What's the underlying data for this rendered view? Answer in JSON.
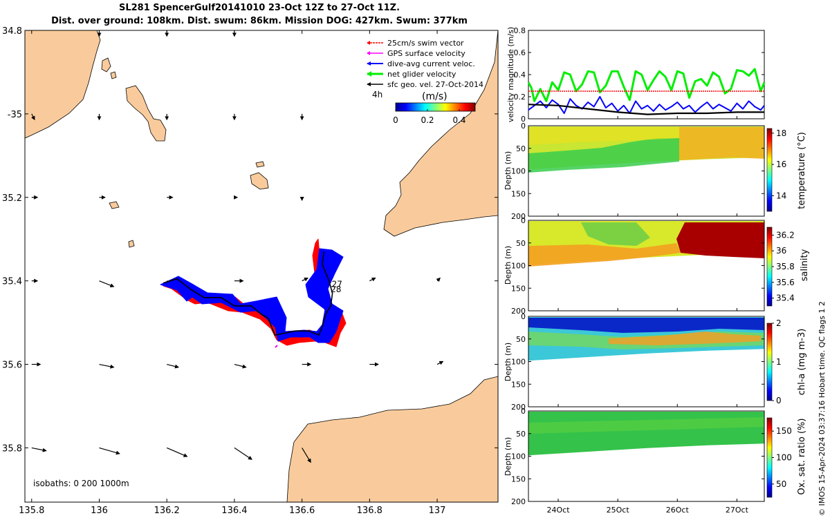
{
  "title_line1": "SL281 SpencerGulf20141010 23-Oct 12Z to 27-Oct 11Z.",
  "title_line2": "Dist. over ground: 108km. Dist. swum: 86km. Mission DOG: 427km. Swum: 377km",
  "credit": "© IMOS 15-Apr-2024 03:37:16 Hobart time. QC flags 1  2",
  "colors": {
    "land": "#f9cb9c",
    "swim": "#ff0000",
    "gps": "#ff00ff",
    "current": "#0000ff",
    "net": "#00ee00",
    "geo": "#000000"
  },
  "chart_data": [
    {
      "type": "map",
      "xlim": [
        135.78,
        137.18
      ],
      "ylim": [
        -35.93,
        -34.8
      ],
      "x_ticks": [
        135.8,
        136,
        136.2,
        136.4,
        136.6,
        136.8,
        137
      ],
      "x_tick_labels": [
        "135.8",
        "136",
        "136.2",
        "136.4",
        "136.6",
        "136.8",
        "137"
      ],
      "y_ticks": [
        -34.8,
        -35,
        -35.2,
        -35.4,
        -35.6,
        -35.8
      ],
      "y_tick_labels": [
        "34.8",
        "-35",
        "35.2",
        "35.4",
        "35.6",
        "35.8"
      ],
      "legend": {
        "position": "top-right",
        "entries": [
          {
            "label": "25cm/s swim vector",
            "color": "#ff0000"
          },
          {
            "label": "GPS surface velocity",
            "color": "#ff00ff"
          },
          {
            "label": "dive-avg current veloc.",
            "color": "#0000ff"
          },
          {
            "label": "net glider velocity",
            "color": "#00ee00"
          },
          {
            "label": "sfc geo. vel. 27-Oct-2014",
            "color": "#000000"
          }
        ],
        "scale_label": "4h"
      },
      "colorbar": {
        "label": "(m/s)",
        "ticks": [
          0,
          0.2,
          0.4
        ],
        "tick_labels": [
          "0",
          "0.2",
          "0.4"
        ],
        "range": [
          0,
          0.5
        ]
      },
      "isobaths_label": "isobaths: 0   200  1000m",
      "day_labels": [
        {
          "text": "27",
          "lon": 136.688,
          "lat": -35.415
        },
        {
          "text": "28",
          "lon": 136.685,
          "lat": -35.427
        }
      ],
      "track": [
        [
          136.19,
          -35.405
        ],
        [
          136.23,
          -35.395
        ],
        [
          136.27,
          -35.42
        ],
        [
          136.31,
          -35.44
        ],
        [
          136.36,
          -35.44
        ],
        [
          136.4,
          -35.46
        ],
        [
          136.45,
          -35.46
        ],
        [
          136.48,
          -35.48
        ],
        [
          136.5,
          -35.49
        ],
        [
          136.52,
          -35.53
        ],
        [
          136.58,
          -35.52
        ],
        [
          136.62,
          -35.52
        ],
        [
          136.65,
          -35.53
        ],
        [
          136.66,
          -35.51
        ],
        [
          136.67,
          -35.48
        ],
        [
          136.685,
          -35.46
        ],
        [
          136.69,
          -35.43
        ],
        [
          136.68,
          -35.4
        ],
        [
          136.66,
          -35.36
        ],
        [
          136.665,
          -35.33
        ]
      ],
      "geo_vectors": [
        {
          "lon": 135.8,
          "lat": -35.0,
          "u": 0.01,
          "v": -0.02
        },
        {
          "lon": 136.0,
          "lat": -35.0,
          "u": 0.0,
          "v": -0.02
        },
        {
          "lon": 136.2,
          "lat": -35.0,
          "u": 0.0,
          "v": -0.02
        },
        {
          "lon": 136.4,
          "lat": -35.0,
          "u": 0.0,
          "v": -0.02
        },
        {
          "lon": 136.6,
          "lat": -35.0,
          "u": 0.0,
          "v": -0.02
        },
        {
          "lon": 136.0,
          "lat": -34.8,
          "u": 0.0,
          "v": -0.02
        },
        {
          "lon": 136.2,
          "lat": -34.8,
          "u": 0.0,
          "v": -0.02
        },
        {
          "lon": 136.4,
          "lat": -34.8,
          "u": 0.0,
          "v": -0.02
        },
        {
          "lon": 135.8,
          "lat": -35.2,
          "u": 0.02,
          "v": 0.0
        },
        {
          "lon": 136.0,
          "lat": -35.2,
          "u": 0.02,
          "v": 0.0
        },
        {
          "lon": 136.2,
          "lat": -35.2,
          "u": 0.02,
          "v": 0.0
        },
        {
          "lon": 136.4,
          "lat": -35.2,
          "u": 0.01,
          "v": 0.0
        },
        {
          "lon": 136.6,
          "lat": -35.2,
          "u": 0.0,
          "v": -0.01
        },
        {
          "lon": 135.8,
          "lat": -35.4,
          "u": 0.02,
          "v": 0.0
        },
        {
          "lon": 136.0,
          "lat": -35.4,
          "u": 0.05,
          "v": -0.02
        },
        {
          "lon": 136.2,
          "lat": -35.4,
          "u": 0.04,
          "v": -0.01
        },
        {
          "lon": 136.4,
          "lat": -35.4,
          "u": 0.03,
          "v": 0.0
        },
        {
          "lon": 136.6,
          "lat": -35.4,
          "u": 0.02,
          "v": 0.01
        },
        {
          "lon": 136.8,
          "lat": -35.4,
          "u": 0.02,
          "v": 0.01
        },
        {
          "lon": 137.0,
          "lat": -35.4,
          "u": 0.01,
          "v": 0.01
        },
        {
          "lon": 135.8,
          "lat": -35.6,
          "u": 0.03,
          "v": 0.0
        },
        {
          "lon": 136.0,
          "lat": -35.6,
          "u": 0.05,
          "v": -0.01
        },
        {
          "lon": 136.2,
          "lat": -35.6,
          "u": 0.04,
          "v": -0.01
        },
        {
          "lon": 136.4,
          "lat": -35.6,
          "u": 0.04,
          "v": -0.01
        },
        {
          "lon": 136.6,
          "lat": -35.6,
          "u": 0.03,
          "v": 0.0
        },
        {
          "lon": 136.8,
          "lat": -35.6,
          "u": 0.03,
          "v": 0.0
        },
        {
          "lon": 137.0,
          "lat": -35.6,
          "u": 0.02,
          "v": 0.01
        },
        {
          "lon": 135.8,
          "lat": -35.8,
          "u": 0.05,
          "v": -0.01
        },
        {
          "lon": 136.0,
          "lat": -35.8,
          "u": 0.07,
          "v": -0.02
        },
        {
          "lon": 136.2,
          "lat": -35.8,
          "u": 0.07,
          "v": -0.03
        },
        {
          "lon": 136.4,
          "lat": -35.8,
          "u": 0.06,
          "v": -0.04
        },
        {
          "lon": 136.6,
          "lat": -35.8,
          "u": 0.03,
          "v": -0.05
        }
      ]
    },
    {
      "type": "line",
      "ylabel": "velocity magnitude (m/s)",
      "ylim": [
        0,
        0.8
      ],
      "y_ticks": [
        0,
        0.2,
        0.4,
        0.6,
        0.8
      ],
      "y_tick_labels": [
        "0",
        "0.2",
        "0.4",
        "0.6",
        "0.8"
      ],
      "x_unit": "days since 23-Oct",
      "xlim": [
        0.5,
        4.46
      ],
      "series": [
        {
          "name": "net glider velocity",
          "color": "#00ee00",
          "x": [
            0.5,
            0.55,
            0.6,
            0.7,
            0.8,
            0.9,
            1.0,
            1.1,
            1.2,
            1.3,
            1.4,
            1.5,
            1.6,
            1.7,
            1.8,
            1.9,
            2.0,
            2.1,
            2.2,
            2.3,
            2.4,
            2.5,
            2.6,
            2.7,
            2.8,
            2.9,
            3.0,
            3.1,
            3.2,
            3.3,
            3.4,
            3.5,
            3.6,
            3.7,
            3.8,
            3.9,
            4.0,
            4.1,
            4.2,
            4.3,
            4.4,
            4.46
          ],
          "y": [
            0.33,
            0.28,
            0.16,
            0.27,
            0.16,
            0.33,
            0.26,
            0.42,
            0.4,
            0.25,
            0.31,
            0.43,
            0.42,
            0.24,
            0.3,
            0.43,
            0.43,
            0.29,
            0.17,
            0.43,
            0.4,
            0.26,
            0.35,
            0.43,
            0.38,
            0.26,
            0.43,
            0.41,
            0.19,
            0.34,
            0.36,
            0.3,
            0.42,
            0.38,
            0.23,
            0.27,
            0.44,
            0.43,
            0.39,
            0.45,
            0.25,
            0.33
          ]
        },
        {
          "name": "dive-avg current veloc.",
          "color": "#0000ff",
          "x": [
            0.5,
            0.6,
            0.7,
            0.8,
            0.9,
            1.0,
            1.1,
            1.2,
            1.3,
            1.4,
            1.5,
            1.6,
            1.7,
            1.8,
            1.9,
            2.0,
            2.1,
            2.2,
            2.3,
            2.4,
            2.5,
            2.6,
            2.7,
            2.8,
            2.9,
            3.0,
            3.1,
            3.2,
            3.3,
            3.4,
            3.5,
            3.6,
            3.7,
            3.8,
            3.9,
            4.0,
            4.1,
            4.2,
            4.3,
            4.4,
            4.46
          ],
          "y": [
            0.08,
            0.12,
            0.16,
            0.1,
            0.17,
            0.13,
            0.05,
            0.18,
            0.12,
            0.09,
            0.15,
            0.11,
            0.2,
            0.1,
            0.14,
            0.07,
            0.12,
            0.05,
            0.16,
            0.09,
            0.12,
            0.07,
            0.13,
            0.08,
            0.11,
            0.15,
            0.09,
            0.12,
            0.06,
            0.11,
            0.15,
            0.09,
            0.13,
            0.1,
            0.07,
            0.14,
            0.09,
            0.16,
            0.11,
            0.08,
            0.12
          ]
        },
        {
          "name": "sfc geo. vel.",
          "color": "#000000",
          "x": [
            0.5,
            1.0,
            1.5,
            2.0,
            2.5,
            3.0,
            3.5,
            4.0,
            4.46
          ],
          "y": [
            0.13,
            0.12,
            0.09,
            0.06,
            0.04,
            0.05,
            0.05,
            0.06,
            0.06
          ]
        },
        {
          "name": "25cm/s swim vector",
          "color": "#ff0000",
          "x": [
            0.5,
            4.46
          ],
          "y": [
            0.25,
            0.25
          ]
        }
      ]
    },
    {
      "type": "heatmap",
      "ylabel": "Depth (m)",
      "ylim": [
        200,
        0
      ],
      "y_ticks": [
        0,
        50,
        100,
        150,
        200
      ],
      "y_tick_labels": [
        "0",
        "50",
        "100",
        "150",
        "200"
      ],
      "cbar_label": "temperature (°C)",
      "cbar_range": [
        13,
        18.3
      ],
      "cbar_ticks": [
        14,
        16,
        18
      ],
      "cbar_tick_labels": [
        "14",
        "16",
        "18"
      ],
      "bottom_depth": {
        "x": [
          0.5,
          1.5,
          2.5,
          3.5,
          4.46
        ],
        "depth": [
          97,
          88,
          80,
          74,
          70
        ]
      }
    },
    {
      "type": "heatmap",
      "ylabel": "Depth (m)",
      "ylim": [
        200,
        0
      ],
      "y_ticks": [
        0,
        50,
        100,
        150,
        200
      ],
      "y_tick_labels": [
        "0",
        "50",
        "100",
        "150",
        "200"
      ],
      "cbar_label": "salinity",
      "cbar_range": [
        35.3,
        36.3
      ],
      "cbar_ticks": [
        35.4,
        35.6,
        35.8,
        36,
        36.2
      ],
      "cbar_tick_labels": [
        "35.4",
        "35.6",
        "35.8",
        "36",
        "36.2"
      ],
      "bottom_depth": {
        "x": [
          0.5,
          1.5,
          2.5,
          3.5,
          4.46
        ],
        "depth": [
          98,
          90,
          82,
          76,
          72
        ]
      }
    },
    {
      "type": "heatmap",
      "ylabel": "Depth (m)",
      "ylim": [
        200,
        0
      ],
      "y_ticks": [
        0,
        50,
        100,
        150,
        200
      ],
      "y_tick_labels": [
        "0",
        "50",
        "100",
        "150",
        "200"
      ],
      "cbar_label": "chl-a (mg m-3)",
      "cbar_range": [
        0,
        2
      ],
      "cbar_ticks": [
        0,
        1,
        2
      ],
      "cbar_tick_labels": [
        "0",
        "1",
        "2"
      ],
      "bottom_depth": {
        "x": [
          0.5,
          1.5,
          2.5,
          3.5,
          4.46
        ],
        "depth": [
          98,
          90,
          82,
          76,
          72
        ]
      }
    },
    {
      "type": "heatmap",
      "ylabel": "Depth (m)",
      "ylim": [
        200,
        0
      ],
      "y_ticks": [
        0,
        50,
        100,
        150,
        200
      ],
      "y_tick_labels": [
        "0",
        "50",
        "100",
        "150",
        "200"
      ],
      "x_ticks": [
        1,
        2,
        3,
        4
      ],
      "x_tick_labels": [
        "24Oct",
        "25Oct",
        "26Oct",
        "27Oct"
      ],
      "cbar_label": "Ox. sat. ratio (%)",
      "cbar_range": [
        25,
        175
      ],
      "cbar_ticks": [
        50,
        100,
        150
      ],
      "cbar_tick_labels": [
        "50",
        "100",
        "150"
      ],
      "bottom_depth": {
        "x": [
          0.5,
          1.5,
          2.5,
          3.5,
          4.46
        ],
        "depth": [
          98,
          90,
          82,
          76,
          72
        ]
      }
    }
  ]
}
